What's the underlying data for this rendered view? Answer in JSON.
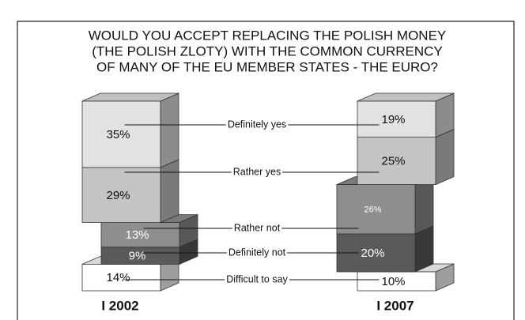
{
  "chart_data": {
    "type": "bar",
    "title": [
      "WOULD YOU ACCEPT REPLACING THE POLISH MONEY",
      "(THE POLISH ZLOTY) WITH THE COMMON CURRENCY",
      "OF MANY OF THE EU MEMBER STATES - THE EURO?"
    ],
    "categories": [
      "Definitely yes",
      "Rather yes",
      "Rather not",
      "Definitely not",
      "Difficult to say"
    ],
    "colors": [
      "#e2e2e2",
      "#c4c4c4",
      "#8e8e8e",
      "#5a5a5a",
      "#ffffff"
    ],
    "series": [
      {
        "name": "I 2002",
        "values": [
          35,
          29,
          13,
          9,
          14
        ],
        "value_labels": [
          "35%",
          "29%",
          "13%",
          "9%",
          "14%"
        ]
      },
      {
        "name": "I 2007",
        "values": [
          19,
          25,
          26,
          20,
          10
        ],
        "value_labels": [
          "19%",
          "25%",
          "26%",
          "20%",
          "10%"
        ]
      }
    ]
  }
}
